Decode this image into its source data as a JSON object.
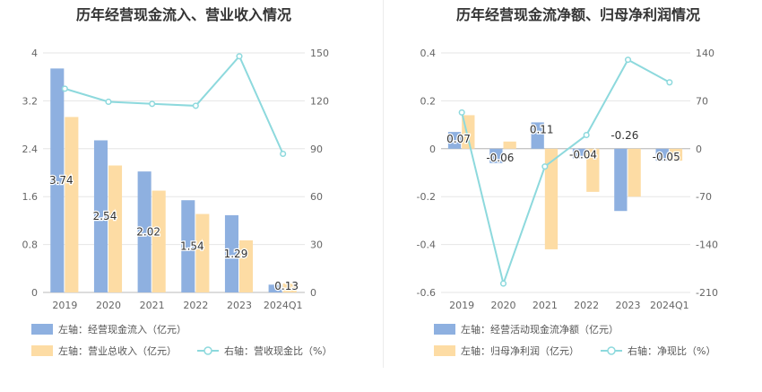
{
  "chart_data": [
    {
      "type": "bar",
      "title": "历年经营现金流入、营业收入情况",
      "categories": [
        "2019",
        "2020",
        "2021",
        "2022",
        "2023",
        "2024Q1"
      ],
      "left_axis": {
        "ticks": [
          "0",
          "0.8",
          "1.6",
          "2.4",
          "3.2",
          "4"
        ],
        "ylim": [
          0,
          4
        ]
      },
      "right_axis": {
        "ticks": [
          "0",
          "30",
          "60",
          "90",
          "120",
          "150"
        ],
        "ylim": [
          0,
          150
        ]
      },
      "series": [
        {
          "name": "左轴：经营现金流入（亿元）",
          "kind": "bar",
          "axis": "left",
          "color": "#8eb0e0",
          "values": [
            3.74,
            2.54,
            2.02,
            1.54,
            1.29,
            0.13
          ],
          "labels": [
            "3.74",
            "2.54",
            "2.02",
            "1.54",
            "1.29",
            "0.13"
          ]
        },
        {
          "name": "左轴：营业总收入（亿元）",
          "kind": "bar",
          "axis": "left",
          "color": "#fddca4",
          "values": [
            2.93,
            2.12,
            1.7,
            1.31,
            0.87,
            0.15
          ]
        },
        {
          "name": "右轴：营收现金比（%）",
          "kind": "line",
          "axis": "right",
          "color": "#8dd9dd",
          "values": [
            127.6,
            119.4,
            118.1,
            116.9,
            147.9,
            86.8
          ]
        }
      ]
    },
    {
      "type": "bar",
      "title": "历年经营现金流净额、归母净利润情况",
      "categories": [
        "2019",
        "2020",
        "2021",
        "2022",
        "2023",
        "2024Q1"
      ],
      "left_axis": {
        "ticks": [
          "-0.6",
          "-0.4",
          "-0.2",
          "0",
          "0.2",
          "0.4"
        ],
        "ylim": [
          -0.6,
          0.4
        ]
      },
      "right_axis": {
        "ticks": [
          "-210",
          "-140",
          "-70",
          "0",
          "70",
          "140"
        ],
        "ylim": [
          -210,
          140
        ]
      },
      "series": [
        {
          "name": "左轴：经营活动现金流净额（亿元）",
          "kind": "bar",
          "axis": "left",
          "color": "#8eb0e0",
          "values": [
            0.07,
            -0.06,
            0.11,
            -0.04,
            -0.26,
            -0.05
          ],
          "labels": [
            "0.07",
            "-0.06",
            "0.11",
            "-0.04",
            "-0.26",
            "-0.05"
          ]
        },
        {
          "name": "左轴：归母净利润（亿元）",
          "kind": "bar",
          "axis": "left",
          "color": "#fddca4",
          "values": [
            0.14,
            0.03,
            -0.42,
            -0.18,
            -0.2,
            -0.05
          ]
        },
        {
          "name": "右轴：净现比（%）",
          "kind": "line",
          "axis": "right",
          "color": "#8dd9dd",
          "values": [
            53,
            -197,
            -26,
            20,
            130,
            97
          ]
        }
      ]
    }
  ]
}
